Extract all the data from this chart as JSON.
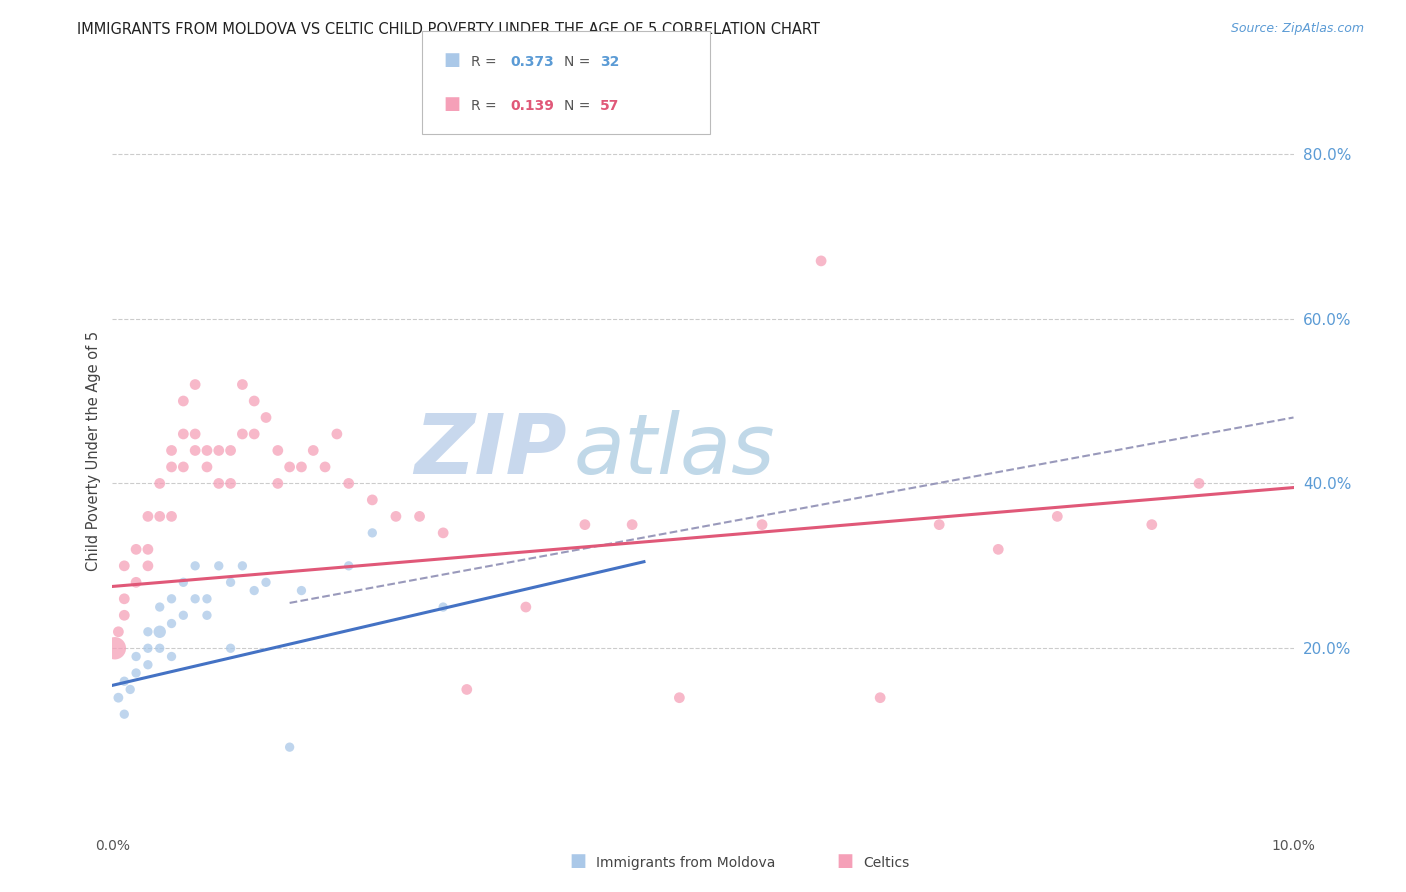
{
  "title": "IMMIGRANTS FROM MOLDOVA VS CELTIC CHILD POVERTY UNDER THE AGE OF 5 CORRELATION CHART",
  "source": "Source: ZipAtlas.com",
  "ylabel": "Child Poverty Under the Age of 5",
  "xlim": [
    0.0,
    0.1
  ],
  "ylim": [
    -0.02,
    0.9
  ],
  "ytick_labels_right": [
    "80.0%",
    "60.0%",
    "40.0%",
    "20.0%"
  ],
  "ytick_vals_right": [
    0.8,
    0.6,
    0.4,
    0.2
  ],
  "bg_color": "#ffffff",
  "grid_color": "#cccccc",
  "title_color": "#222222",
  "right_axis_color": "#5b9bd5",
  "color_moldova": "#aac8e8",
  "color_celtics": "#f5a0b8",
  "color_line_moldova": "#4472c4",
  "color_line_celtics": "#e05878",
  "color_dashed": "#9999bb",
  "watermark_zip": "ZIP",
  "watermark_atlas": "atlas",
  "watermark_color_zip": "#c8d8ed",
  "watermark_color_atlas": "#c0d8e8",
  "moldova_x": [
    0.0005,
    0.001,
    0.001,
    0.0015,
    0.002,
    0.002,
    0.003,
    0.003,
    0.003,
    0.004,
    0.004,
    0.004,
    0.005,
    0.005,
    0.005,
    0.006,
    0.006,
    0.007,
    0.007,
    0.008,
    0.008,
    0.009,
    0.01,
    0.01,
    0.011,
    0.012,
    0.013,
    0.015,
    0.016,
    0.02,
    0.022,
    0.028
  ],
  "moldova_y": [
    0.14,
    0.12,
    0.16,
    0.15,
    0.17,
    0.19,
    0.2,
    0.18,
    0.22,
    0.22,
    0.2,
    0.25,
    0.23,
    0.19,
    0.26,
    0.24,
    0.28,
    0.26,
    0.3,
    0.24,
    0.26,
    0.3,
    0.2,
    0.28,
    0.3,
    0.27,
    0.28,
    0.08,
    0.27,
    0.3,
    0.34,
    0.25
  ],
  "moldova_sizes": [
    50,
    45,
    45,
    45,
    45,
    45,
    45,
    45,
    45,
    80,
    45,
    45,
    45,
    45,
    45,
    45,
    45,
    45,
    45,
    45,
    45,
    45,
    45,
    45,
    45,
    45,
    45,
    45,
    45,
    45,
    45,
    45
  ],
  "celtics_x": [
    0.0002,
    0.0005,
    0.001,
    0.001,
    0.001,
    0.002,
    0.002,
    0.003,
    0.003,
    0.003,
    0.004,
    0.004,
    0.005,
    0.005,
    0.005,
    0.006,
    0.006,
    0.006,
    0.007,
    0.007,
    0.007,
    0.008,
    0.008,
    0.009,
    0.009,
    0.01,
    0.01,
    0.011,
    0.011,
    0.012,
    0.012,
    0.013,
    0.014,
    0.014,
    0.015,
    0.016,
    0.017,
    0.018,
    0.019,
    0.02,
    0.022,
    0.024,
    0.026,
    0.028,
    0.03,
    0.035,
    0.04,
    0.044,
    0.048,
    0.055,
    0.06,
    0.065,
    0.07,
    0.075,
    0.08,
    0.088,
    0.092
  ],
  "celtics_y": [
    0.2,
    0.22,
    0.24,
    0.26,
    0.3,
    0.28,
    0.32,
    0.3,
    0.32,
    0.36,
    0.36,
    0.4,
    0.36,
    0.42,
    0.44,
    0.42,
    0.46,
    0.5,
    0.44,
    0.46,
    0.52,
    0.42,
    0.44,
    0.4,
    0.44,
    0.4,
    0.44,
    0.46,
    0.52,
    0.5,
    0.46,
    0.48,
    0.44,
    0.4,
    0.42,
    0.42,
    0.44,
    0.42,
    0.46,
    0.4,
    0.38,
    0.36,
    0.36,
    0.34,
    0.15,
    0.25,
    0.35,
    0.35,
    0.14,
    0.35,
    0.67,
    0.14,
    0.35,
    0.32,
    0.36,
    0.35,
    0.4
  ],
  "celtics_sizes": [
    260,
    60,
    60,
    60,
    60,
    60,
    60,
    60,
    60,
    60,
    60,
    60,
    60,
    60,
    60,
    60,
    60,
    60,
    60,
    60,
    60,
    60,
    60,
    60,
    60,
    60,
    60,
    60,
    60,
    60,
    60,
    60,
    60,
    60,
    60,
    60,
    60,
    60,
    60,
    60,
    60,
    60,
    60,
    60,
    60,
    60,
    60,
    60,
    60,
    60,
    60,
    60,
    60,
    60,
    60,
    60,
    60
  ],
  "line_moldova_x0": 0.0,
  "line_moldova_y0": 0.155,
  "line_moldova_x1": 0.045,
  "line_moldova_y1": 0.305,
  "line_celtics_x0": 0.0,
  "line_celtics_y0": 0.275,
  "line_celtics_x1": 0.1,
  "line_celtics_y1": 0.395,
  "line_dashed_x0": 0.015,
  "line_dashed_y0": 0.255,
  "line_dashed_x1": 0.1,
  "line_dashed_y1": 0.48
}
